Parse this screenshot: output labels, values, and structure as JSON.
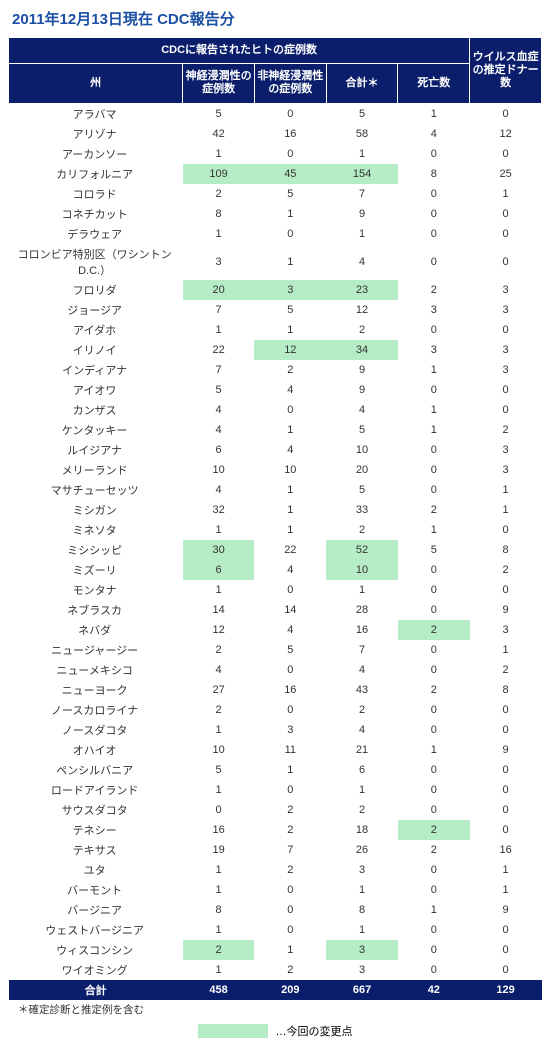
{
  "title": "2011年12月13日現在  CDC報告分",
  "table": {
    "header_top": "CDCに報告されたヒトの症例数",
    "columns": [
      "州",
      "神経浸潤性の症例数",
      "非神経浸潤性の症例数",
      "合計＊",
      "死亡数",
      "ウイルス血症の推定ドナー数"
    ],
    "rows": [
      {
        "s": "アラバマ",
        "v": [
          "5",
          "0",
          "5",
          "1",
          "0"
        ],
        "hl": [
          0,
          0,
          0,
          0,
          0
        ]
      },
      {
        "s": "アリゾナ",
        "v": [
          "42",
          "16",
          "58",
          "4",
          "12"
        ],
        "hl": [
          0,
          0,
          0,
          0,
          0
        ]
      },
      {
        "s": "アーカンソー",
        "v": [
          "1",
          "0",
          "1",
          "0",
          "0"
        ],
        "hl": [
          0,
          0,
          0,
          0,
          0
        ]
      },
      {
        "s": "カリフォルニア",
        "v": [
          "109",
          "45",
          "154",
          "8",
          "25"
        ],
        "hl": [
          1,
          1,
          1,
          0,
          0
        ]
      },
      {
        "s": "コロラド",
        "v": [
          "2",
          "5",
          "7",
          "0",
          "1"
        ],
        "hl": [
          0,
          0,
          0,
          0,
          0
        ]
      },
      {
        "s": "コネチカット",
        "v": [
          "8",
          "1",
          "9",
          "0",
          "0"
        ],
        "hl": [
          0,
          0,
          0,
          0,
          0
        ]
      },
      {
        "s": "デラウェア",
        "v": [
          "1",
          "0",
          "1",
          "0",
          "0"
        ],
        "hl": [
          0,
          0,
          0,
          0,
          0
        ]
      },
      {
        "s": "コロンビア特別区（ワシントンD.C.）",
        "v": [
          "3",
          "1",
          "4",
          "0",
          "0"
        ],
        "hl": [
          0,
          0,
          0,
          0,
          0
        ]
      },
      {
        "s": "フロリダ",
        "v": [
          "20",
          "3",
          "23",
          "2",
          "3"
        ],
        "hl": [
          1,
          1,
          1,
          0,
          0
        ]
      },
      {
        "s": "ジョージア",
        "v": [
          "7",
          "5",
          "12",
          "3",
          "3"
        ],
        "hl": [
          0,
          0,
          0,
          0,
          0
        ]
      },
      {
        "s": "アイダホ",
        "v": [
          "1",
          "1",
          "2",
          "0",
          "0"
        ],
        "hl": [
          0,
          0,
          0,
          0,
          0
        ]
      },
      {
        "s": "イリノイ",
        "v": [
          "22",
          "12",
          "34",
          "3",
          "3"
        ],
        "hl": [
          0,
          1,
          1,
          0,
          0
        ]
      },
      {
        "s": "インディアナ",
        "v": [
          "7",
          "2",
          "9",
          "1",
          "3"
        ],
        "hl": [
          0,
          0,
          0,
          0,
          0
        ]
      },
      {
        "s": "アイオワ",
        "v": [
          "5",
          "4",
          "9",
          "0",
          "0"
        ],
        "hl": [
          0,
          0,
          0,
          0,
          0
        ]
      },
      {
        "s": "カンザス",
        "v": [
          "4",
          "0",
          "4",
          "1",
          "0"
        ],
        "hl": [
          0,
          0,
          0,
          0,
          0
        ]
      },
      {
        "s": "ケンタッキー",
        "v": [
          "4",
          "1",
          "5",
          "1",
          "2"
        ],
        "hl": [
          0,
          0,
          0,
          0,
          0
        ]
      },
      {
        "s": "ルイジアナ",
        "v": [
          "6",
          "4",
          "10",
          "0",
          "3"
        ],
        "hl": [
          0,
          0,
          0,
          0,
          0
        ]
      },
      {
        "s": "メリーランド",
        "v": [
          "10",
          "10",
          "20",
          "0",
          "3"
        ],
        "hl": [
          0,
          0,
          0,
          0,
          0
        ]
      },
      {
        "s": "マサチューセッツ",
        "v": [
          "4",
          "1",
          "5",
          "0",
          "1"
        ],
        "hl": [
          0,
          0,
          0,
          0,
          0
        ]
      },
      {
        "s": "ミシガン",
        "v": [
          "32",
          "1",
          "33",
          "2",
          "1"
        ],
        "hl": [
          0,
          0,
          0,
          0,
          0
        ]
      },
      {
        "s": "ミネソタ",
        "v": [
          "1",
          "1",
          "2",
          "1",
          "0"
        ],
        "hl": [
          0,
          0,
          0,
          0,
          0
        ]
      },
      {
        "s": "ミシシッピ",
        "v": [
          "30",
          "22",
          "52",
          "5",
          "8"
        ],
        "hl": [
          1,
          0,
          1,
          0,
          0
        ]
      },
      {
        "s": "ミズーリ",
        "v": [
          "6",
          "4",
          "10",
          "0",
          "2"
        ],
        "hl": [
          1,
          0,
          1,
          0,
          0
        ]
      },
      {
        "s": "モンタナ",
        "v": [
          "1",
          "0",
          "1",
          "0",
          "0"
        ],
        "hl": [
          0,
          0,
          0,
          0,
          0
        ]
      },
      {
        "s": "ネブラスカ",
        "v": [
          "14",
          "14",
          "28",
          "0",
          "9"
        ],
        "hl": [
          0,
          0,
          0,
          0,
          0
        ]
      },
      {
        "s": "ネバダ",
        "v": [
          "12",
          "4",
          "16",
          "2",
          "3"
        ],
        "hl": [
          0,
          0,
          0,
          1,
          0
        ]
      },
      {
        "s": "ニュージャージー",
        "v": [
          "2",
          "5",
          "7",
          "0",
          "1"
        ],
        "hl": [
          0,
          0,
          0,
          0,
          0
        ]
      },
      {
        "s": "ニューメキシコ",
        "v": [
          "4",
          "0",
          "4",
          "0",
          "2"
        ],
        "hl": [
          0,
          0,
          0,
          0,
          0
        ]
      },
      {
        "s": "ニューヨーク",
        "v": [
          "27",
          "16",
          "43",
          "2",
          "8"
        ],
        "hl": [
          0,
          0,
          0,
          0,
          0
        ]
      },
      {
        "s": "ノースカロライナ",
        "v": [
          "2",
          "0",
          "2",
          "0",
          "0"
        ],
        "hl": [
          0,
          0,
          0,
          0,
          0
        ]
      },
      {
        "s": "ノースダコタ",
        "v": [
          "1",
          "3",
          "4",
          "0",
          "0"
        ],
        "hl": [
          0,
          0,
          0,
          0,
          0
        ]
      },
      {
        "s": "オハイオ",
        "v": [
          "10",
          "11",
          "21",
          "1",
          "9"
        ],
        "hl": [
          0,
          0,
          0,
          0,
          0
        ]
      },
      {
        "s": "ペンシルバニア",
        "v": [
          "5",
          "1",
          "6",
          "0",
          "0"
        ],
        "hl": [
          0,
          0,
          0,
          0,
          0
        ]
      },
      {
        "s": "ロードアイランド",
        "v": [
          "1",
          "0",
          "1",
          "0",
          "0"
        ],
        "hl": [
          0,
          0,
          0,
          0,
          0
        ]
      },
      {
        "s": "サウスダコタ",
        "v": [
          "0",
          "2",
          "2",
          "0",
          "0"
        ],
        "hl": [
          0,
          0,
          0,
          0,
          0
        ]
      },
      {
        "s": "テネシー",
        "v": [
          "16",
          "2",
          "18",
          "2",
          "0"
        ],
        "hl": [
          0,
          0,
          0,
          1,
          0
        ]
      },
      {
        "s": "テキサス",
        "v": [
          "19",
          "7",
          "26",
          "2",
          "16"
        ],
        "hl": [
          0,
          0,
          0,
          0,
          0
        ]
      },
      {
        "s": "ユタ",
        "v": [
          "1",
          "2",
          "3",
          "0",
          "1"
        ],
        "hl": [
          0,
          0,
          0,
          0,
          0
        ]
      },
      {
        "s": "バーモント",
        "v": [
          "1",
          "0",
          "1",
          "0",
          "1"
        ],
        "hl": [
          0,
          0,
          0,
          0,
          0
        ]
      },
      {
        "s": "バージニア",
        "v": [
          "8",
          "0",
          "8",
          "1",
          "9"
        ],
        "hl": [
          0,
          0,
          0,
          0,
          0
        ]
      },
      {
        "s": "ウェストバージニア",
        "v": [
          "1",
          "0",
          "1",
          "0",
          "0"
        ],
        "hl": [
          0,
          0,
          0,
          0,
          0
        ]
      },
      {
        "s": "ウィスコンシン",
        "v": [
          "2",
          "1",
          "3",
          "0",
          "0"
        ],
        "hl": [
          1,
          0,
          1,
          0,
          0
        ]
      },
      {
        "s": "ワイオミング",
        "v": [
          "1",
          "2",
          "3",
          "0",
          "0"
        ],
        "hl": [
          0,
          0,
          0,
          0,
          0
        ]
      }
    ],
    "total": {
      "label": "合計",
      "v": [
        "458",
        "209",
        "667",
        "42",
        "129"
      ]
    }
  },
  "footnote": "＊確定診断と推定例を含む",
  "legend": "…今回の変更点",
  "colors": {
    "header_bg": "#0b1e6b",
    "highlight": "#b6ecc6",
    "title": "#1a4fa3"
  }
}
